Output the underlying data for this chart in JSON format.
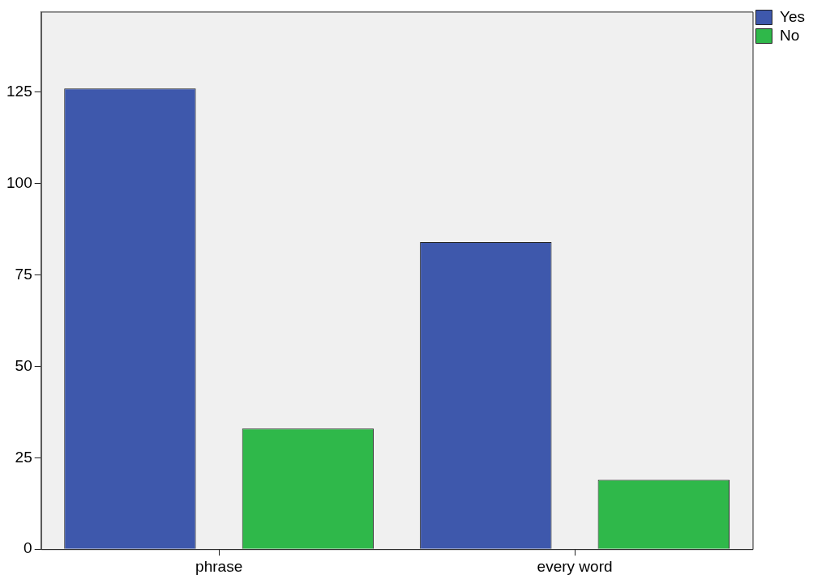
{
  "chart_data": {
    "type": "bar",
    "categories": [
      "phrase",
      "every word"
    ],
    "series": [
      {
        "name": "Yes",
        "color": "#3e58ac",
        "values": [
          126,
          84
        ]
      },
      {
        "name": "No",
        "color": "#2fb84a",
        "values": [
          33,
          19
        ]
      }
    ],
    "ylim": [
      0,
      147
    ],
    "yticks": [
      0,
      25,
      50,
      75,
      100,
      125
    ],
    "grid": false,
    "legend": "top right"
  }
}
